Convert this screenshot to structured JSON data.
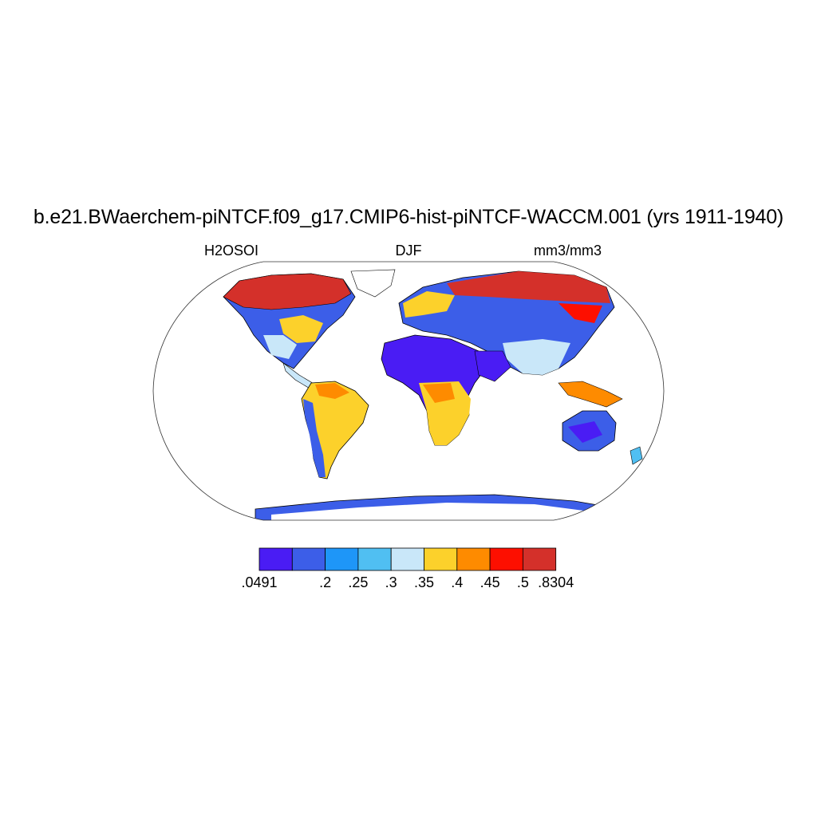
{
  "title": "b.e21.BWaerchem-piNTCF.f09_g17.CMIP6-hist-piNTCF-WACCM.001 (yrs 1911-1940)",
  "subtitles": {
    "left": "H2OSOI",
    "center": "DJF",
    "right": "mm3/mm3"
  },
  "map": {
    "projection": "Robinson",
    "ocean_color": "#ffffff",
    "coastline_color": "#000000"
  },
  "colorbar": {
    "colors": [
      "#4a1cf4",
      "#3c5ee8",
      "#1e96f8",
      "#50bff2",
      "#c9e7f9",
      "#fcd12b",
      "#fe8b00",
      "#fd0f00",
      "#d4302a"
    ],
    "labels": [
      ".0491",
      ".2",
      ".25",
      ".3",
      ".35",
      ".4",
      ".45",
      ".5",
      ".8304"
    ]
  }
}
